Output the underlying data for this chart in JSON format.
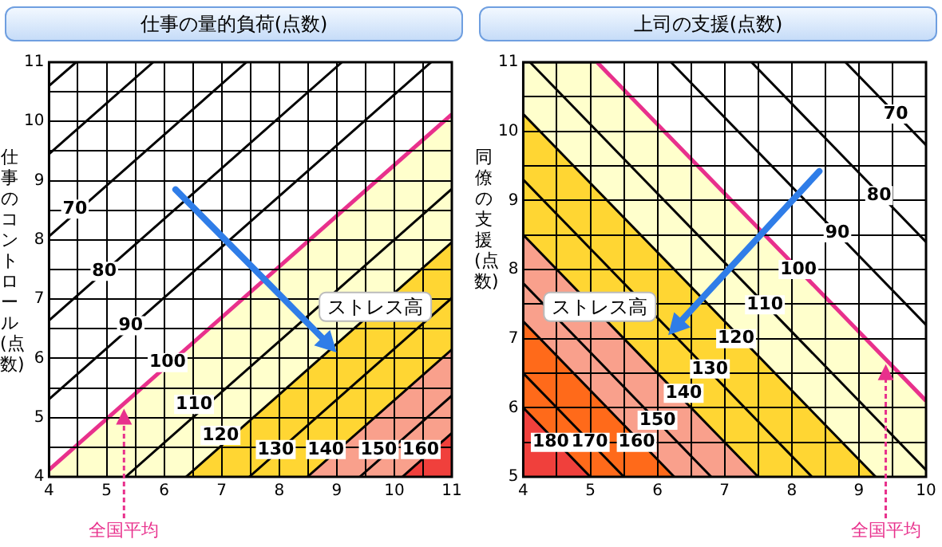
{
  "chart_data": [
    {
      "type": "line",
      "title": "仕事の量的負荷(点数)",
      "ylabel": "仕事のコントロール(点数)",
      "xlim": [
        4,
        11
      ],
      "ylim": [
        4,
        11
      ],
      "xticks": [
        4,
        {
          "value": 4.5,
          "label": null
        },
        5,
        {
          "value": 5.5,
          "label": null
        },
        6,
        {
          "value": 6.5,
          "label": null
        },
        7,
        {
          "value": 7.5,
          "label": null
        },
        8,
        {
          "value": 8.5,
          "label": null
        },
        9,
        {
          "value": 9.5,
          "label": null
        },
        10,
        {
          "value": 10.5,
          "label": null
        },
        11
      ],
      "yticks": [
        4,
        {
          "value": 4.5,
          "label": null
        },
        5,
        {
          "value": 5.5,
          "label": null
        },
        6,
        {
          "value": 6.5,
          "label": null
        },
        7,
        {
          "value": 7.5,
          "label": null
        },
        8,
        {
          "value": 8.5,
          "label": null
        },
        9,
        {
          "value": 9.5,
          "label": null
        },
        10,
        {
          "value": 10.5,
          "label": null
        },
        11
      ],
      "grid": true,
      "legend": false,
      "marker": "none",
      "series": [
        {
          "type": "area",
          "color": "#ffffcc",
          "x": [
            4,
            11
          ],
          "values": [
            4.12,
            10.12
          ]
        },
        {
          "type": "area",
          "color": "#ffd633",
          "x": [
            6.38,
            11
          ],
          "values": [
            4,
            7.96
          ]
        },
        {
          "type": "area",
          "color": "#f9a08c",
          "x": [
            8.49,
            11
          ],
          "values": [
            4,
            6.15
          ]
        },
        {
          "type": "area",
          "color": "#f0403c",
          "x": [
            10.14,
            11
          ],
          "values": [
            4,
            4.74
          ]
        },
        {
          "color": "#000000",
          "x": [
            4,
            4.47
          ],
          "values": [
            10.6,
            11
          ]
        },
        {
          "color": "#000000",
          "x": [
            4,
            5.81
          ],
          "values": [
            9.45,
            11
          ]
        },
        {
          "color": "#000000",
          "x": [
            4,
            7.43
          ],
          "values": [
            8.06,
            11
          ]
        },
        {
          "color": "#000000",
          "x": [
            4,
            9.09
          ],
          "values": [
            6.64,
            11
          ]
        },
        {
          "color": "#000000",
          "x": [
            4,
            10.64
          ],
          "values": [
            5.31,
            11
          ]
        },
        {
          "color": "#000000",
          "x": [
            5.33,
            11
          ],
          "values": [
            4,
            8.86
          ]
        },
        {
          "color": "#000000",
          "x": [
            7.48,
            11
          ],
          "values": [
            4,
            7.02
          ]
        },
        {
          "color": "#000000",
          "x": [
            9.4,
            11
          ],
          "values": [
            4,
            5.37
          ]
        },
        {
          "color": "#e8308c",
          "x": [
            4,
            11
          ],
          "values": [
            4.12,
            10.12
          ]
        }
      ],
      "annotations": [
        "ストレス高",
        {
          "text": "70",
          "x": 4.45,
          "y": 8.52
        },
        {
          "text": "80",
          "x": 4.96,
          "y": 7.47
        },
        {
          "text": "90",
          "x": 5.42,
          "y": 6.55
        },
        {
          "text": "100",
          "x": 6.06,
          "y": 5.93
        },
        {
          "text": "110",
          "x": 6.52,
          "y": 5.22
        },
        {
          "text": "120",
          "x": 6.98,
          "y": 4.7
        },
        {
          "text": "130",
          "x": 7.94,
          "y": 4.46
        },
        {
          "text": "140",
          "x": 8.81,
          "y": 4.46
        },
        {
          "text": "150",
          "x": 9.73,
          "y": 4.46
        },
        {
          "text": "160",
          "x": 10.46,
          "y": 4.46
        },
        "全国平均"
      ]
    },
    {
      "type": "line",
      "title": "上司の支援(点数)",
      "ylabel": "同僚の支援(点数)",
      "xlim": [
        4,
        10
      ],
      "ylim": [
        5,
        11
      ],
      "xticks": [
        4,
        {
          "value": 4.5,
          "label": null
        },
        5,
        {
          "value": 5.5,
          "label": null
        },
        6,
        {
          "value": 6.5,
          "label": null
        },
        7,
        {
          "value": 7.5,
          "label": null
        },
        8,
        {
          "value": 8.5,
          "label": null
        },
        9,
        {
          "value": 9.5,
          "label": null
        },
        10
      ],
      "yticks": [
        5,
        {
          "value": 5.5,
          "label": null
        },
        6,
        {
          "value": 6.5,
          "label": null
        },
        7,
        {
          "value": 7.5,
          "label": null
        },
        8,
        {
          "value": 8.5,
          "label": null
        },
        9,
        {
          "value": 9.5,
          "label": null
        },
        10,
        {
          "value": 10.5,
          "label": null
        },
        11
      ],
      "grid": true,
      "legend": false,
      "marker": "none",
      "series": [
        {
          "type": "area",
          "color": "#ffffcc",
          "x": [
            4,
            5.1,
            10
          ],
          "values": [
            11,
            11,
            6.1
          ]
        },
        {
          "type": "area",
          "color": "#ffd633",
          "x": [
            4,
            9.25
          ],
          "values": [
            10.25,
            5
          ]
        },
        {
          "type": "area",
          "color": "#f9a08c",
          "x": [
            4,
            7.5
          ],
          "values": [
            8.5,
            5
          ]
        },
        {
          "type": "area",
          "color": "#ff6a1a",
          "x": [
            4,
            6.25
          ],
          "values": [
            7.25,
            5
          ]
        },
        {
          "type": "area",
          "color": "#f0403c",
          "x": [
            4,
            5
          ],
          "values": [
            6,
            5
          ]
        },
        {
          "color": "#000000",
          "x": [
            8.8,
            10
          ],
          "values": [
            11,
            9.8
          ]
        },
        {
          "color": "#000000",
          "x": [
            7.4,
            10
          ],
          "values": [
            11,
            8.4
          ]
        },
        {
          "color": "#000000",
          "x": [
            6.2,
            10
          ],
          "values": [
            11,
            7.2
          ]
        },
        {
          "color": "#000000",
          "x": [
            4.1,
            10
          ],
          "values": [
            11,
            5.1
          ]
        },
        {
          "color": "#000000",
          "x": [
            4,
            8.3
          ],
          "values": [
            9.3,
            5
          ]
        },
        {
          "color": "#000000",
          "x": [
            4,
            6.8
          ],
          "values": [
            7.8,
            5
          ]
        },
        {
          "color": "#000000",
          "x": [
            4,
            5.5
          ],
          "values": [
            6.5,
            5
          ]
        },
        {
          "color": "#e8308c",
          "x": [
            5.1,
            10
          ],
          "values": [
            11,
            6.1
          ]
        }
      ],
      "annotations": [
        "ストレス高",
        {
          "text": "70",
          "x": 9.55,
          "y": 10.25
        },
        {
          "text": "80",
          "x": 9.3,
          "y": 9.07
        },
        {
          "text": "90",
          "x": 8.68,
          "y": 8.53
        },
        {
          "text": "100",
          "x": 8.1,
          "y": 8.0
        },
        {
          "text": "110",
          "x": 7.6,
          "y": 7.49
        },
        {
          "text": "120",
          "x": 7.17,
          "y": 7.0
        },
        {
          "text": "130",
          "x": 6.78,
          "y": 6.56
        },
        {
          "text": "140",
          "x": 6.39,
          "y": 6.21
        },
        {
          "text": "150",
          "x": 6.0,
          "y": 5.82
        },
        {
          "text": "160",
          "x": 5.69,
          "y": 5.5
        },
        {
          "text": "170",
          "x": 4.99,
          "y": 5.5
        },
        {
          "text": "180",
          "x": 4.41,
          "y": 5.5
        },
        "全国平均"
      ]
    }
  ]
}
